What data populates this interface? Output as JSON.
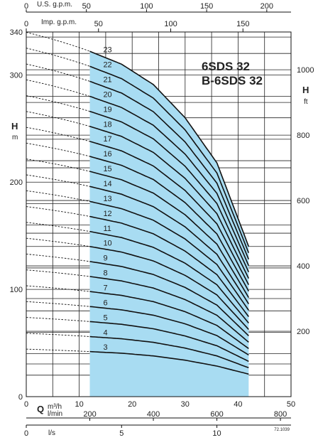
{
  "chart_data": {
    "type": "line",
    "title": "6SDS 32",
    "subtitle": "B-6SDS 32",
    "xlabel": "Q",
    "ylabel": "H",
    "y_unit_left": "m",
    "y_unit_right": "ft",
    "x_units": {
      "m3h": "m³/h",
      "lmin": "l/min",
      "ls": "l/s"
    },
    "top_axes": [
      {
        "label": "U.S. g.p.m.",
        "ticks": [
          "0",
          "50",
          "100",
          "150",
          "200"
        ]
      },
      {
        "label": "Imp. g.p.m.",
        "ticks": [
          "0",
          "50",
          "100",
          "150"
        ]
      }
    ],
    "xlim": [
      0,
      50
    ],
    "ylim": [
      0,
      340
    ],
    "x_ticks": [
      "0",
      "10",
      "20",
      "30",
      "40",
      "50"
    ],
    "y_ticks": [
      "0",
      "100",
      "200",
      "300",
      "340"
    ],
    "y_ticks_ft": [
      "200",
      "400",
      "600",
      "800",
      "1000"
    ],
    "lmin_ticks": [
      "200",
      "400",
      "600",
      "800"
    ],
    "ls_ticks": [
      "0",
      "5",
      "10"
    ],
    "operating_range_m3h": [
      12,
      42
    ],
    "stage_labels": [
      "3",
      "4",
      "5",
      "6",
      "7",
      "8",
      "9",
      "10",
      "11",
      "12",
      "13",
      "14",
      "15",
      "16",
      "17",
      "18",
      "19",
      "20",
      "21",
      "22",
      "23"
    ],
    "series": [
      {
        "stages": 3,
        "x": [
          12,
          18,
          24,
          30,
          36,
          42
        ],
        "y": [
          42,
          40.5,
          38,
          34,
          28.5,
          21
        ]
      },
      {
        "stages": 23,
        "x": [
          12,
          18,
          24,
          30,
          36,
          42
        ],
        "y": [
          322,
          310,
          291,
          260,
          218,
          140
        ]
      }
    ],
    "grid": true,
    "doc_code": "72.1039"
  }
}
